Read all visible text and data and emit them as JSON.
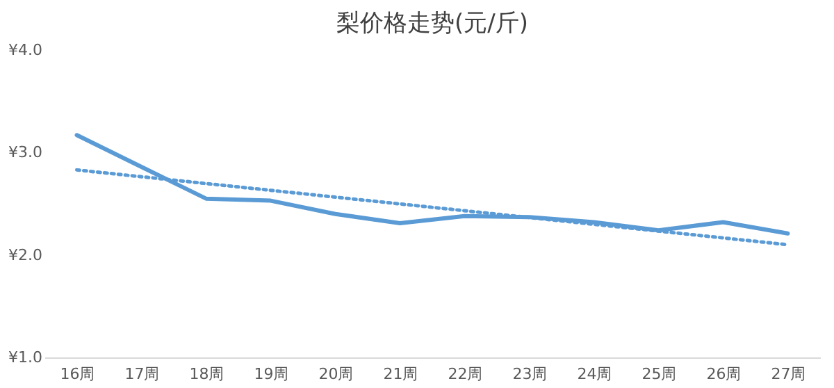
{
  "chart_data": {
    "type": "line",
    "title": "梨价格走势(元/斤)",
    "categories": [
      "16周",
      "17周",
      "18周",
      "19周",
      "20周",
      "21周",
      "22周",
      "23周",
      "24周",
      "25周",
      "26周",
      "27周"
    ],
    "series": [
      {
        "color": "#5b9bd5",
        "values": [
          3.17,
          2.86,
          2.55,
          2.53,
          2.4,
          2.31,
          2.38,
          2.37,
          2.32,
          2.24,
          2.32,
          2.21
        ]
      },
      {
        "type": "line",
        "line_style": "dotted",
        "color": "#5b9bd5",
        "x": [
          "16周",
          "27周"
        ],
        "values": [
          2.83,
          2.1
        ]
      }
    ],
    "ylim": [
      1.0,
      4.0
    ],
    "yticks": [
      {
        "value": 1.0,
        "label": "¥1.0"
      },
      {
        "value": 2.0,
        "label": "¥2.0"
      },
      {
        "value": 3.0,
        "label": "¥3.0"
      },
      {
        "value": 4.0,
        "label": "¥4.0"
      }
    ],
    "grid": false,
    "marker": "none",
    "line_style": "solid"
  }
}
